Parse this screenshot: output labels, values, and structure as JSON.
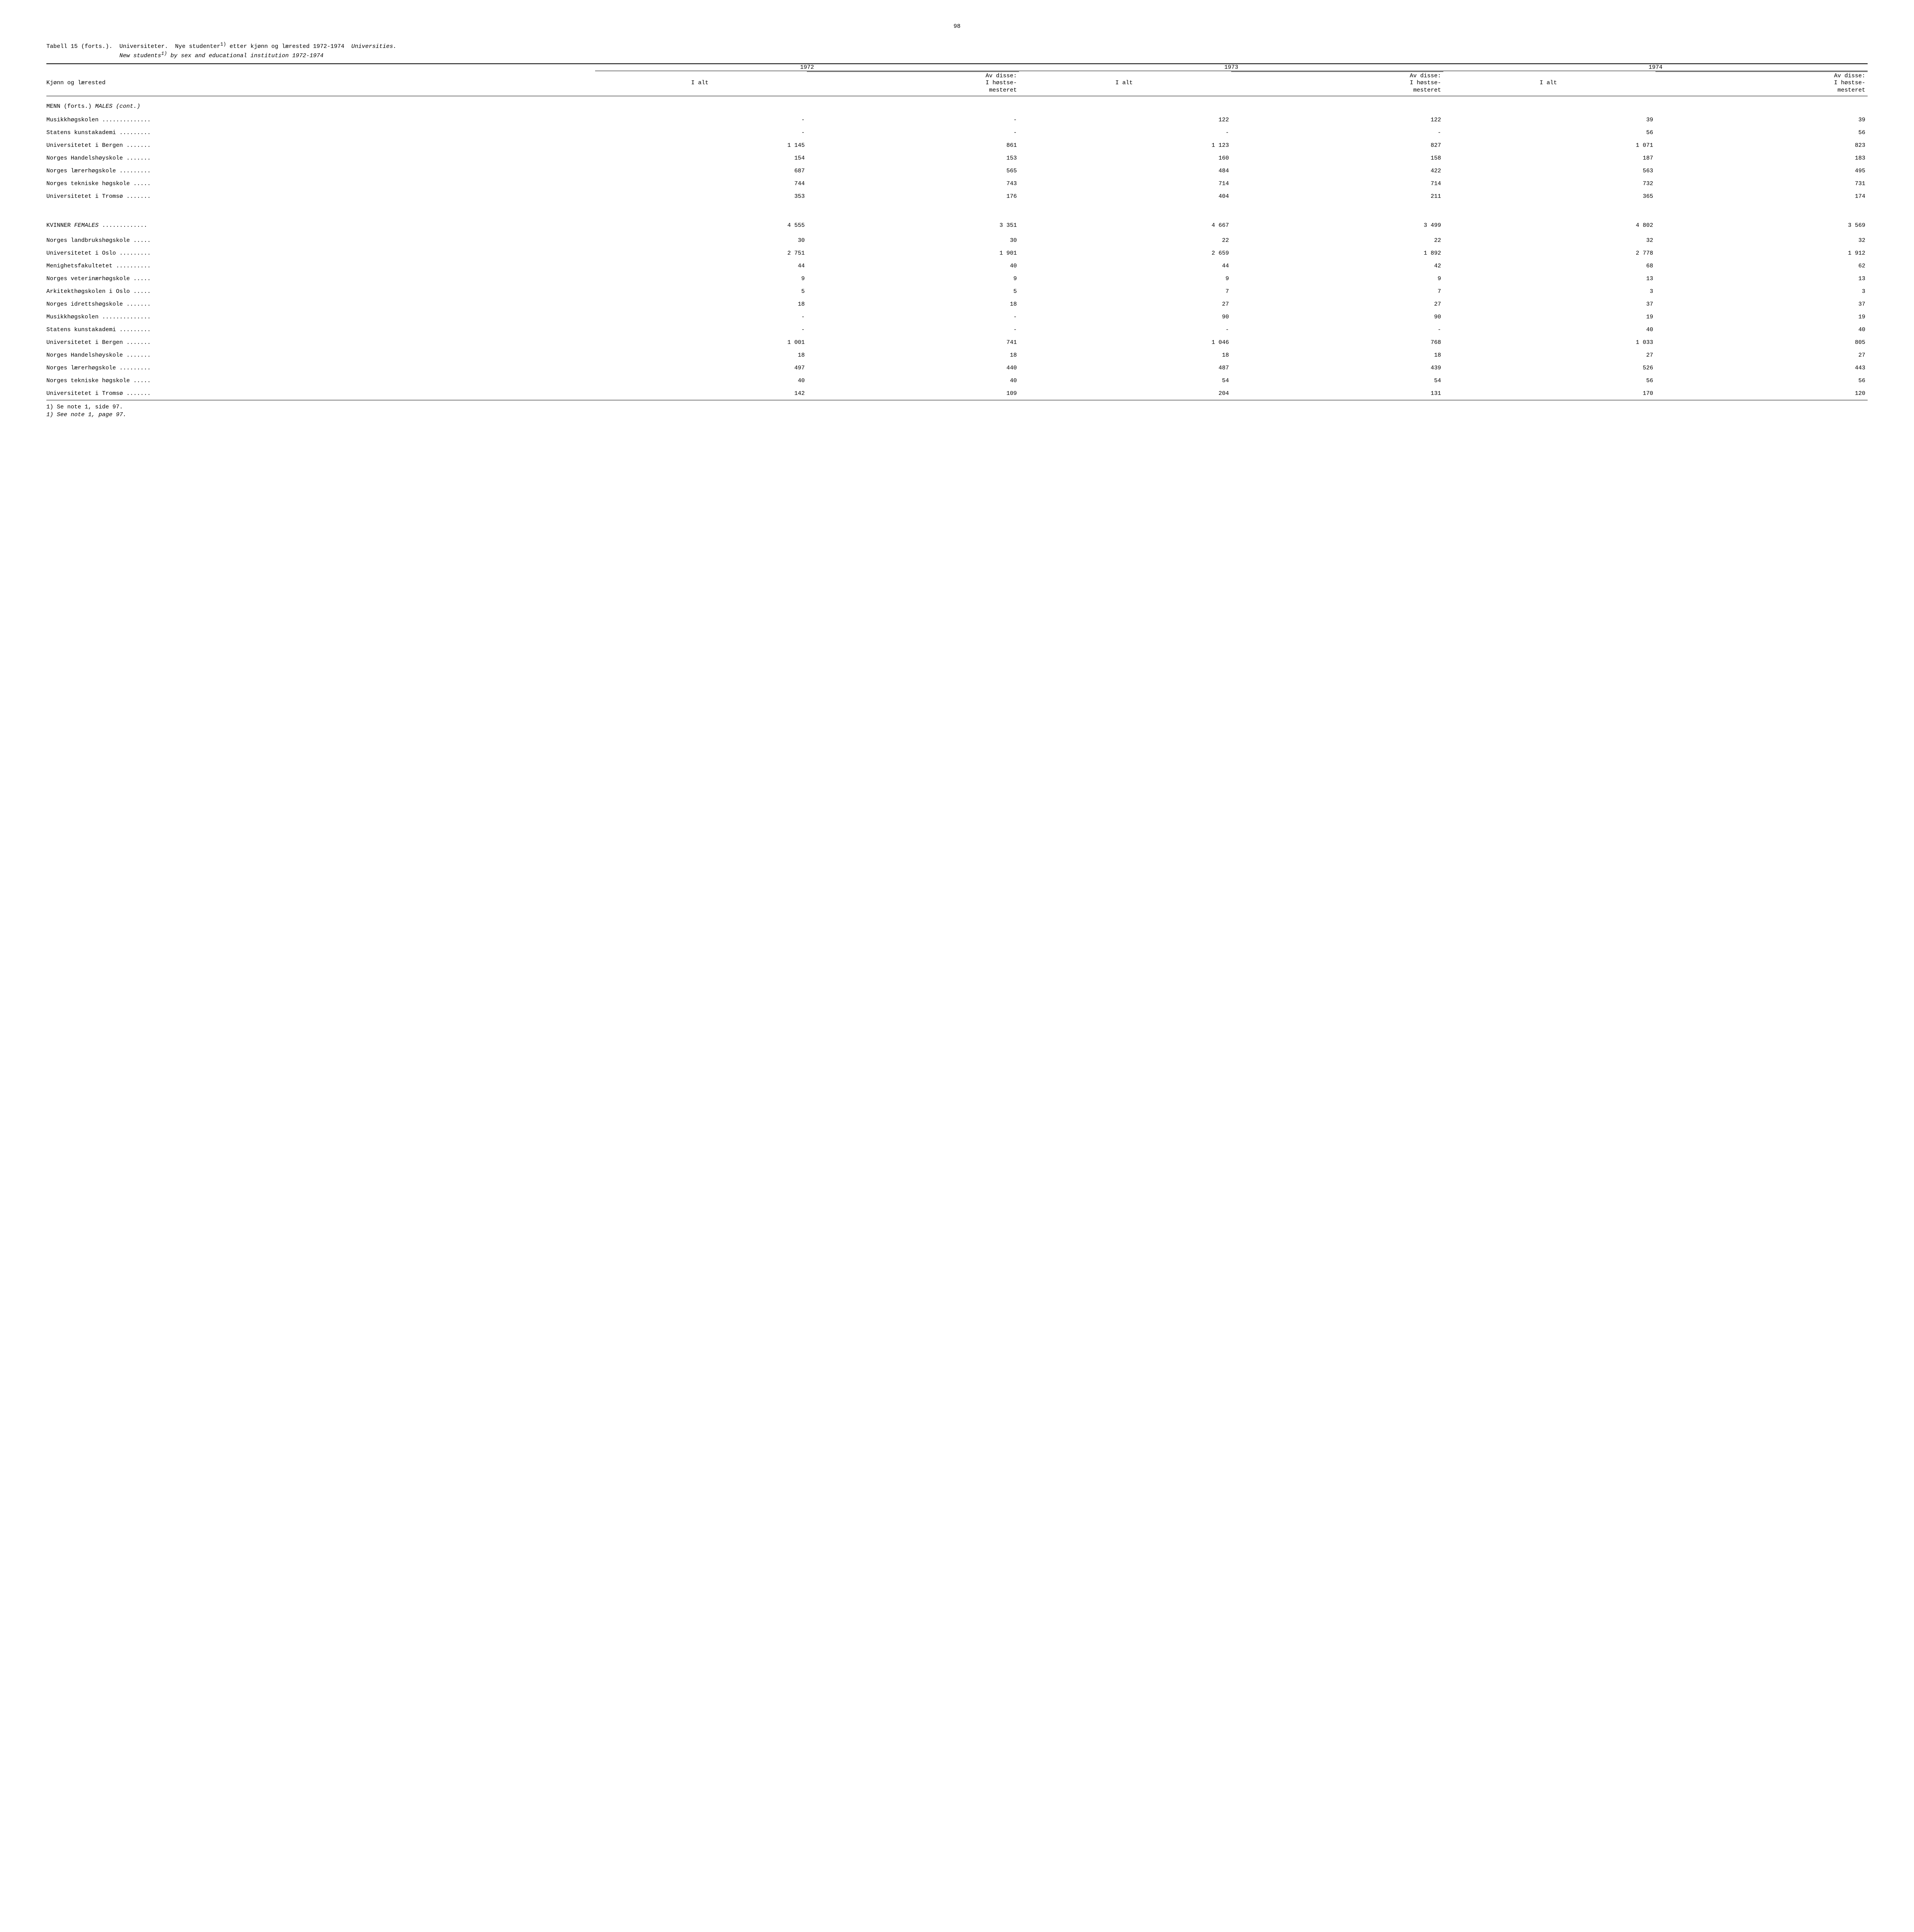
{
  "page_number": "98",
  "title": {
    "line1_prefix": "Tabell 15 (forts.).  Universiteter.  Nye studenter",
    "line1_sup": "1)",
    "line1_mid": " etter kjønn og lærested 1972-1974  ",
    "line1_italic": "Universities.",
    "line2_indent": "                     ",
    "line2_italic_a": "New students",
    "line2_sup": "1)",
    "line2_italic_b": " by sex and educational institution 1972-1974"
  },
  "header": {
    "row_label": "Kjønn og lærested",
    "years": [
      "1972",
      "1973",
      "1974"
    ],
    "sub_total": "I alt",
    "sub_of": "Av disse:\nI høstse-\nmesteret"
  },
  "sections": [
    {
      "heading_plain": "MENN (forts.) ",
      "heading_italic": "MALES (cont.)",
      "big_gap": false,
      "rows": [
        {
          "label": "Musikkhøgskolen ..............",
          "vals": [
            "-",
            "-",
            "122",
            "122",
            "39",
            "39"
          ]
        },
        {
          "label": "Statens kunstakademi .........",
          "vals": [
            "-",
            "-",
            "-",
            "-",
            "56",
            "56"
          ]
        },
        {
          "label": "Universitetet i Bergen .......",
          "vals": [
            "1 145",
            "861",
            "1 123",
            "827",
            "1 071",
            "823"
          ]
        },
        {
          "label": "Norges Handelshøyskole .......",
          "vals": [
            "154",
            "153",
            "160",
            "158",
            "187",
            "183"
          ]
        },
        {
          "label": "Norges lærerhøgskole .........",
          "vals": [
            "687",
            "565",
            "484",
            "422",
            "563",
            "495"
          ]
        },
        {
          "label": "Norges tekniske høgskole .....",
          "vals": [
            "744",
            "743",
            "714",
            "714",
            "732",
            "731"
          ]
        },
        {
          "label": "Universitetet i Tromsø .......",
          "vals": [
            "353",
            "176",
            "404",
            "211",
            "365",
            "174"
          ]
        }
      ]
    },
    {
      "heading_plain": "KVINNER  ",
      "heading_italic": "FEMALES",
      "heading_dots": " .............",
      "heading_vals": [
        "4 555",
        "3 351",
        "4 667",
        "3 499",
        "4 802",
        "3 569"
      ],
      "big_gap": true,
      "rows": [
        {
          "label": "Norges landbrukshøgskole .....",
          "vals": [
            "30",
            "30",
            "22",
            "22",
            "32",
            "32"
          ]
        },
        {
          "label": "Universitetet i Oslo .........",
          "vals": [
            "2 751",
            "1 901",
            "2 659",
            "1 892",
            "2 778",
            "1 912"
          ]
        },
        {
          "label": "Menighetsfakultetet ..........",
          "vals": [
            "44",
            "40",
            "44",
            "42",
            "68",
            "62"
          ]
        },
        {
          "label": "Norges veterinærhøgskole .....",
          "vals": [
            "9",
            "9",
            "9",
            "9",
            "13",
            "13"
          ]
        },
        {
          "label": "Arkitekthøgskolen i Oslo .....",
          "vals": [
            "5",
            "5",
            "7",
            "7",
            "3",
            "3"
          ]
        },
        {
          "label": "Norges idrettshøgskole .......",
          "vals": [
            "18",
            "18",
            "27",
            "27",
            "37",
            "37"
          ]
        },
        {
          "label": "Musikkhøgskolen ..............",
          "vals": [
            "-",
            "-",
            "90",
            "90",
            "19",
            "19"
          ]
        },
        {
          "label": "Statens kunstakademi .........",
          "vals": [
            "-",
            "-",
            "-",
            "-",
            "40",
            "40"
          ]
        },
        {
          "label": "Universitetet i Bergen .......",
          "vals": [
            "1 001",
            "741",
            "1 046",
            "768",
            "1 033",
            "805"
          ]
        },
        {
          "label": "Norges Handelshøyskole .......",
          "vals": [
            "18",
            "18",
            "18",
            "18",
            "27",
            "27"
          ]
        },
        {
          "label": "Norges lærerhøgskole .........",
          "vals": [
            "497",
            "440",
            "487",
            "439",
            "526",
            "443"
          ]
        },
        {
          "label": "Norges tekniske høgskole .....",
          "vals": [
            "40",
            "40",
            "54",
            "54",
            "56",
            "56"
          ]
        },
        {
          "label": "Universitetet i Tromsø .......",
          "vals": [
            "142",
            "109",
            "204",
            "131",
            "170",
            "120"
          ]
        }
      ]
    }
  ],
  "footnotes": {
    "line1": "1) Se note 1, side 97.",
    "line2": "1) See note 1, page 97."
  }
}
